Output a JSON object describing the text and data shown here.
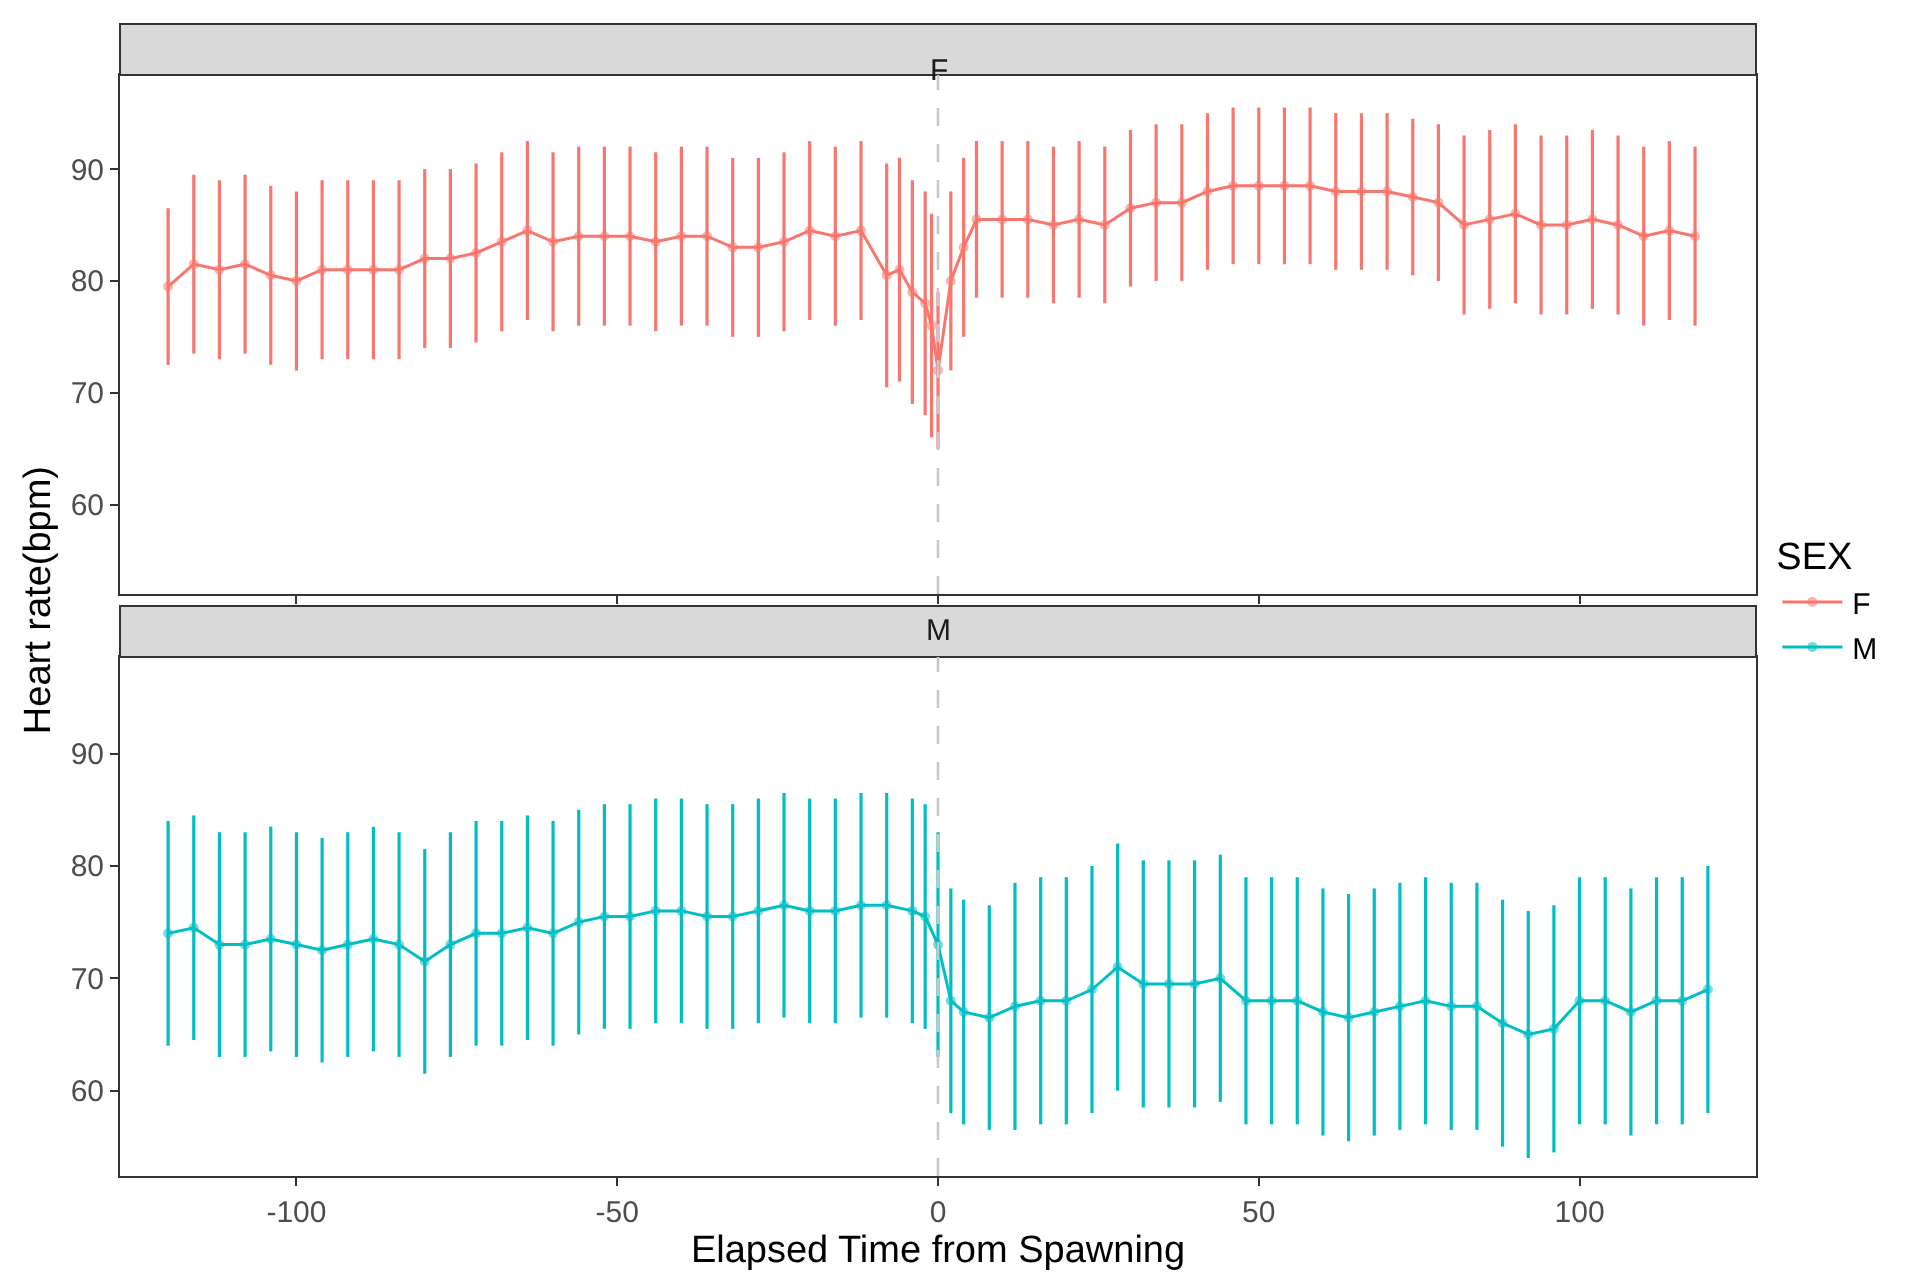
{
  "chart_data": [
    {
      "type": "line",
      "title": "F",
      "ylabel": "Heart rate(bpm)",
      "legend_title": "SEX",
      "legend": "right",
      "marker": "circle",
      "line_style": "solid",
      "grid": false,
      "tick_labels": "y",
      "xlim": [
        -127.5,
        127.5
      ],
      "xticks": [
        -100,
        -50,
        0,
        50,
        100
      ],
      "ylim": [
        52,
        98.4
      ],
      "yticks": [
        60,
        70,
        80,
        90
      ],
      "ref_lines": [
        {
          "axis": "x",
          "value": 0,
          "color": "#c8c8c8",
          "line_style": "dashed"
        }
      ],
      "series": [
        {
          "name": "F",
          "color": "#f8766d",
          "x": [
            -120,
            -116,
            -112,
            -108,
            -104,
            -100,
            -96,
            -92,
            -88,
            -84,
            -80,
            -76,
            -72,
            -68,
            -64,
            -60,
            -56,
            -52,
            -48,
            -44,
            -40,
            -36,
            -32,
            -28,
            -24,
            -20,
            -16,
            -12,
            -8,
            -6,
            -4,
            -2,
            -1,
            0,
            2,
            4,
            6,
            10,
            14,
            18,
            22,
            26,
            30,
            34,
            38,
            42,
            46,
            50,
            54,
            58,
            62,
            66,
            70,
            74,
            78,
            82,
            86,
            90,
            94,
            98,
            102,
            106,
            110,
            114,
            118
          ],
          "values": [
            79.5,
            81.5,
            81,
            81.5,
            80.5,
            80,
            81,
            81,
            81,
            81,
            82,
            82,
            82.5,
            83.5,
            84.5,
            83.5,
            84,
            84,
            84,
            83.5,
            84,
            84,
            83,
            83,
            83.5,
            84.5,
            84,
            84.5,
            80.5,
            81,
            79,
            78,
            76,
            72,
            80,
            83,
            85.5,
            85.5,
            85.5,
            85,
            85.5,
            85,
            86.5,
            87,
            87,
            88,
            88.5,
            88.5,
            88.5,
            88.5,
            88,
            88,
            88,
            87.5,
            87,
            85,
            85.5,
            86,
            85,
            85,
            85.5,
            85,
            84,
            84.5,
            84
          ],
          "errors": [
            7,
            8,
            8,
            8,
            8,
            8,
            8,
            8,
            8,
            8,
            8,
            8,
            8,
            8,
            8,
            8,
            8,
            8,
            8,
            8,
            8,
            8,
            8,
            8,
            8,
            8,
            8,
            8,
            10,
            10,
            10,
            10,
            10,
            7,
            8,
            8,
            7,
            7,
            7,
            7,
            7,
            7,
            7,
            7,
            7,
            7,
            7,
            7,
            7,
            7,
            7,
            7,
            7,
            7,
            7,
            8,
            8,
            8,
            8,
            8,
            8,
            8,
            8,
            8,
            8
          ]
        }
      ]
    },
    {
      "type": "line",
      "title": "M",
      "xlabel": "Elapsed Time from Spawning",
      "legend": "right",
      "marker": "circle",
      "line_style": "solid",
      "grid": false,
      "xlim": [
        -127.5,
        127.5
      ],
      "xticks": [
        -100,
        -50,
        0,
        50,
        100
      ],
      "ylim": [
        52.4,
        98.6
      ],
      "yticks": [
        60,
        70,
        80,
        90
      ],
      "ref_lines": [
        {
          "axis": "x",
          "value": 0,
          "color": "#c8c8c8",
          "line_style": "dashed"
        }
      ],
      "series": [
        {
          "name": "M",
          "color": "#00bfc4",
          "x": [
            -120,
            -116,
            -112,
            -108,
            -104,
            -100,
            -96,
            -92,
            -88,
            -84,
            -80,
            -76,
            -72,
            -68,
            -64,
            -60,
            -56,
            -52,
            -48,
            -44,
            -40,
            -36,
            -32,
            -28,
            -24,
            -20,
            -16,
            -12,
            -8,
            -4,
            -2,
            0,
            2,
            4,
            8,
            12,
            16,
            20,
            24,
            28,
            32,
            36,
            40,
            44,
            48,
            52,
            56,
            60,
            64,
            68,
            72,
            76,
            80,
            84,
            88,
            92,
            96,
            100,
            104,
            108,
            112,
            116,
            120
          ],
          "values": [
            74,
            74.5,
            73,
            73,
            73.5,
            73,
            72.5,
            73,
            73.5,
            73,
            71.5,
            73,
            74,
            74,
            74.5,
            74,
            75,
            75.5,
            75.5,
            76,
            76,
            75.5,
            75.5,
            76,
            76.5,
            76,
            76,
            76.5,
            76.5,
            76,
            75.5,
            73,
            68,
            67,
            66.5,
            67.5,
            68,
            68,
            69,
            71,
            69.5,
            69.5,
            69.5,
            70,
            68,
            68,
            68,
            67,
            66.5,
            67,
            67.5,
            68,
            67.5,
            67.5,
            66,
            65,
            65.5,
            68,
            68,
            67,
            68,
            68,
            69
          ],
          "errors": [
            10,
            10,
            10,
            10,
            10,
            10,
            10,
            10,
            10,
            10,
            10,
            10,
            10,
            10,
            10,
            10,
            10,
            10,
            10,
            10,
            10,
            10,
            10,
            10,
            10,
            10,
            10,
            10,
            10,
            10,
            10,
            10,
            10,
            10,
            10,
            11,
            11,
            11,
            11,
            11,
            11,
            11,
            11,
            11,
            11,
            11,
            11,
            11,
            11,
            11,
            11,
            11,
            11,
            11,
            11,
            11,
            11,
            11,
            11,
            11,
            11,
            11,
            11
          ]
        }
      ]
    }
  ]
}
